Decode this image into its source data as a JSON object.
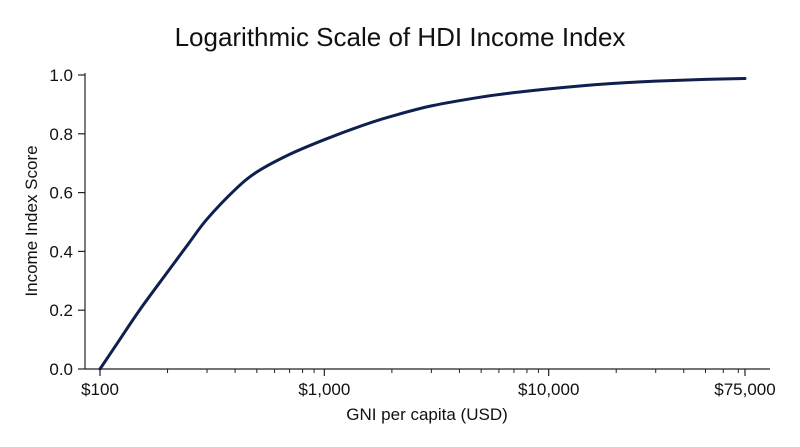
{
  "chart_data": {
    "type": "line",
    "title": "Logarithmic Scale of HDI Income Index",
    "xlabel": "GNI per capita (USD)",
    "ylabel": "Income Index Score",
    "x_scale": "log",
    "xlim": [
      100,
      75000
    ],
    "ylim": [
      0,
      1
    ],
    "grid": false,
    "legend": "none",
    "x_ticks": [
      {
        "value": 100,
        "label": "$100"
      },
      {
        "value": 1000,
        "label": "$1,000"
      },
      {
        "value": 10000,
        "label": "$10,000"
      },
      {
        "value": 75000,
        "label": "$75,000"
      }
    ],
    "y_ticks": [
      {
        "value": 0.0,
        "label": "0.0"
      },
      {
        "value": 0.2,
        "label": "0.2"
      },
      {
        "value": 0.4,
        "label": "0.4"
      },
      {
        "value": 0.6,
        "label": "0.6"
      },
      {
        "value": 0.8,
        "label": "0.8"
      },
      {
        "value": 1.0,
        "label": "1.0"
      }
    ],
    "series": [
      {
        "color": "#0f1f4f",
        "x": [
          100,
          120,
          150,
          200,
          250,
          300,
          400,
          500,
          700,
          1000,
          1500,
          2000,
          3000,
          5000,
          7000,
          10000,
          15000,
          20000,
          30000,
          50000,
          75000
        ],
        "y": [
          0.0,
          0.09,
          0.2,
          0.33,
          0.43,
          0.51,
          0.61,
          0.67,
          0.73,
          0.78,
          0.83,
          0.86,
          0.895,
          0.925,
          0.94,
          0.953,
          0.965,
          0.972,
          0.979,
          0.985,
          0.988
        ]
      }
    ]
  }
}
